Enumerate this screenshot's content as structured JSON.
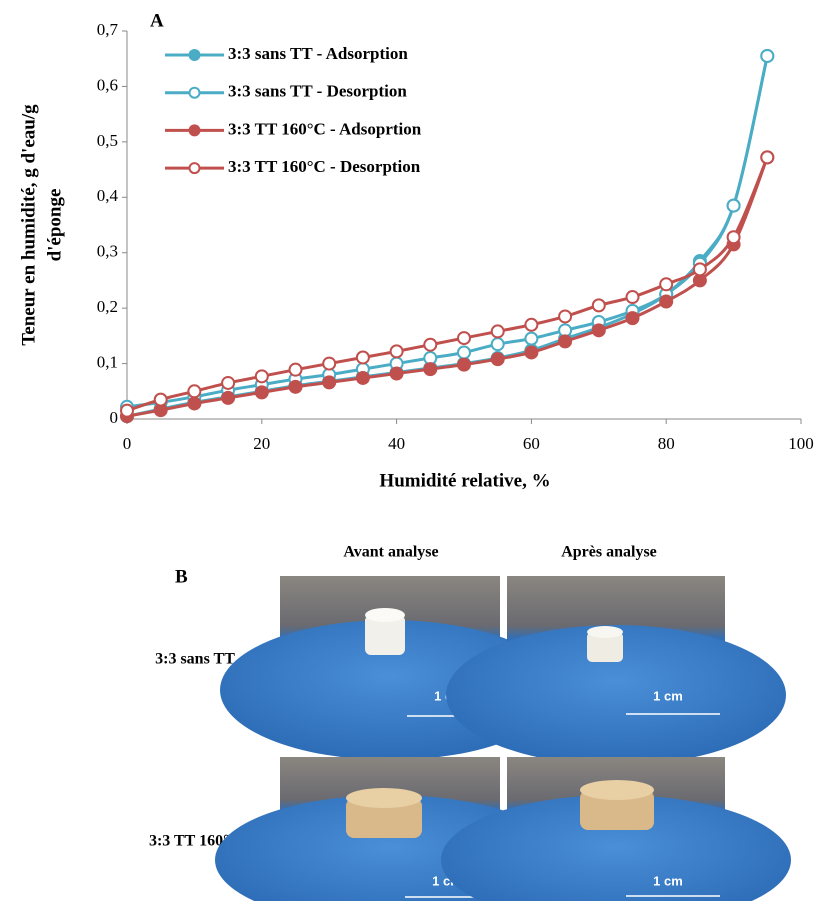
{
  "chart_data": {
    "type": "line",
    "panel_label": "A",
    "x_label": "Humidité relative, %",
    "y_label": [
      "Teneur en humidité, g d'eau/g",
      "d'éponge"
    ],
    "x": [
      0,
      5,
      10,
      15,
      20,
      25,
      30,
      35,
      40,
      45,
      50,
      55,
      60,
      65,
      70,
      75,
      80,
      85,
      90,
      95
    ],
    "series": [
      {
        "name": "3:3 sans TT - Adsorption",
        "color": "#4bacc6",
        "marker_filled": true,
        "values": [
          0.005,
          0.018,
          0.03,
          0.04,
          0.05,
          0.06,
          0.068,
          0.076,
          0.084,
          0.092,
          0.1,
          0.11,
          0.124,
          0.145,
          0.165,
          0.19,
          0.225,
          0.285,
          0.385,
          0.655
        ]
      },
      {
        "name": "3:3 sans TT - Desorption",
        "color": "#4bacc6",
        "marker_filled": false,
        "values": [
          0.022,
          0.03,
          0.04,
          0.052,
          0.062,
          0.072,
          0.08,
          0.09,
          0.1,
          0.11,
          0.12,
          0.135,
          0.145,
          0.16,
          0.175,
          0.195,
          0.225,
          0.28,
          0.385,
          0.655
        ]
      },
      {
        "name": "3:3 TT 160°C - Adsoprtion",
        "color": "#c0504d",
        "marker_filled": true,
        "values": [
          0.005,
          0.016,
          0.028,
          0.038,
          0.048,
          0.058,
          0.066,
          0.074,
          0.082,
          0.09,
          0.098,
          0.108,
          0.12,
          0.14,
          0.16,
          0.182,
          0.212,
          0.25,
          0.315,
          0.472
        ]
      },
      {
        "name": "3:3 TT 160°C - Desorption",
        "color": "#c0504d",
        "marker_filled": false,
        "values": [
          0.015,
          0.035,
          0.05,
          0.065,
          0.077,
          0.089,
          0.1,
          0.111,
          0.122,
          0.134,
          0.146,
          0.158,
          0.17,
          0.185,
          0.205,
          0.22,
          0.243,
          0.27,
          0.328,
          0.472
        ]
      }
    ],
    "xlim": [
      0,
      100
    ],
    "xticks": [
      0,
      20,
      40,
      60,
      80,
      100
    ],
    "ylim": [
      0,
      0.7
    ],
    "yticks": [
      0,
      {
        "value": 0.1,
        "label": "0,1"
      },
      {
        "value": 0.2,
        "label": "0,2"
      },
      {
        "value": 0.3,
        "label": "0,3"
      },
      {
        "value": 0.4,
        "label": "0,4"
      },
      {
        "value": 0.5,
        "label": "0,5"
      },
      {
        "value": 0.6,
        "label": "0,6"
      },
      {
        "value": 0.7,
        "label": "0,7"
      }
    ],
    "grid": false
  },
  "panel_b": {
    "label": "B",
    "columns": [
      "Avant analyse",
      "Après analyse"
    ],
    "rows": [
      "3:3 sans TT",
      "3:3 TT 160°C"
    ],
    "scale_labels": [
      [
        "1 cm",
        "1 cm"
      ],
      [
        "1 cm",
        "1 cm"
      ]
    ]
  }
}
